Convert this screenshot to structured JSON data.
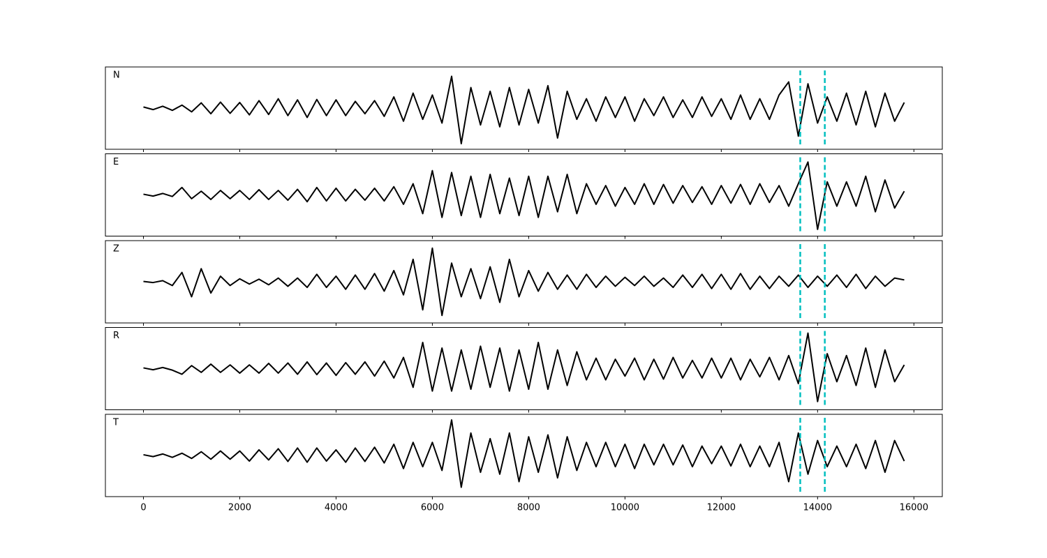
{
  "chart_data": {
    "type": "line",
    "x": [
      0,
      200,
      400,
      600,
      800,
      1000,
      1200,
      1400,
      1600,
      1800,
      2000,
      2200,
      2400,
      2600,
      2800,
      3000,
      3200,
      3400,
      3600,
      3800,
      4000,
      4200,
      4400,
      4600,
      4800,
      5000,
      5200,
      5400,
      5600,
      5800,
      6000,
      6200,
      6400,
      6600,
      6800,
      7000,
      7200,
      7400,
      7600,
      7800,
      8000,
      8200,
      8400,
      8600,
      8800,
      9000,
      9200,
      9400,
      9600,
      9800,
      10000,
      10200,
      10400,
      10600,
      10800,
      11000,
      11200,
      11400,
      11600,
      11800,
      12000,
      12200,
      12400,
      12600,
      12800,
      13000,
      13200,
      13400,
      13600,
      13800,
      14000,
      14200,
      14400,
      14600,
      14800,
      15000,
      15200,
      15400,
      15600,
      15800
    ],
    "xlim": [
      -790,
      16590
    ],
    "xticks": [
      0,
      2000,
      4000,
      6000,
      8000,
      10000,
      12000,
      14000,
      16000
    ],
    "ylim": [
      -1.1,
      1.1
    ],
    "color": "#000000",
    "vlines": [
      13640,
      14150
    ],
    "vline_color": "#00bfbf",
    "panels": [
      {
        "label": "N",
        "values": [
          0.03,
          -0.04,
          0.05,
          -0.06,
          0.08,
          -0.1,
          0.14,
          -0.15,
          0.16,
          -0.14,
          0.15,
          -0.18,
          0.2,
          -0.17,
          0.25,
          -0.2,
          0.22,
          -0.25,
          0.23,
          -0.2,
          0.22,
          -0.2,
          0.18,
          -0.15,
          0.2,
          -0.22,
          0.3,
          -0.35,
          0.4,
          -0.3,
          0.35,
          -0.4,
          0.85,
          -0.95,
          0.55,
          -0.45,
          0.45,
          -0.5,
          0.55,
          -0.45,
          0.5,
          -0.4,
          0.6,
          -0.8,
          0.45,
          -0.3,
          0.25,
          -0.35,
          0.3,
          -0.25,
          0.3,
          -0.35,
          0.25,
          -0.2,
          0.3,
          -0.25,
          0.22,
          -0.25,
          0.3,
          -0.22,
          0.25,
          -0.3,
          0.35,
          -0.3,
          0.25,
          -0.3,
          0.35,
          0.7,
          -0.75,
          0.65,
          -0.4,
          0.3,
          -0.35,
          0.4,
          -0.45,
          0.45,
          -0.5,
          0.4,
          -0.35,
          0.15
        ]
      },
      {
        "label": "E",
        "values": [
          0.02,
          -0.03,
          0.04,
          -0.04,
          0.2,
          -0.1,
          0.1,
          -0.12,
          0.12,
          -0.1,
          0.12,
          -0.12,
          0.14,
          -0.12,
          0.12,
          -0.14,
          0.15,
          -0.18,
          0.2,
          -0.16,
          0.18,
          -0.16,
          0.15,
          -0.14,
          0.18,
          -0.16,
          0.22,
          -0.25,
          0.3,
          -0.5,
          0.65,
          -0.6,
          0.6,
          -0.55,
          0.5,
          -0.6,
          0.55,
          -0.5,
          0.45,
          -0.55,
          0.5,
          -0.6,
          0.5,
          -0.45,
          0.55,
          -0.5,
          0.3,
          -0.25,
          0.25,
          -0.3,
          0.2,
          -0.25,
          0.3,
          -0.25,
          0.28,
          -0.22,
          0.25,
          -0.2,
          0.22,
          -0.25,
          0.25,
          -0.22,
          0.28,
          -0.25,
          0.3,
          -0.2,
          0.25,
          -0.3,
          0.3,
          0.88,
          -0.92,
          0.35,
          -0.3,
          0.35,
          -0.3,
          0.5,
          -0.45,
          0.4,
          -0.35,
          0.1
        ]
      },
      {
        "label": "Z",
        "values": [
          0.01,
          -0.02,
          0.03,
          -0.1,
          0.25,
          -0.4,
          0.35,
          -0.3,
          0.15,
          -0.1,
          0.08,
          -0.06,
          0.07,
          -0.08,
          0.1,
          -0.12,
          0.1,
          -0.15,
          0.2,
          -0.15,
          0.15,
          -0.2,
          0.18,
          -0.2,
          0.22,
          -0.25,
          0.3,
          -0.35,
          0.6,
          -0.75,
          0.9,
          -0.9,
          0.5,
          -0.4,
          0.35,
          -0.45,
          0.4,
          -0.55,
          0.6,
          -0.4,
          0.3,
          -0.25,
          0.25,
          -0.2,
          0.18,
          -0.2,
          0.2,
          -0.15,
          0.15,
          -0.12,
          0.12,
          -0.1,
          0.15,
          -0.12,
          0.1,
          -0.15,
          0.18,
          -0.15,
          0.2,
          -0.18,
          0.2,
          -0.2,
          0.22,
          -0.2,
          0.15,
          -0.18,
          0.15,
          -0.12,
          0.18,
          -0.15,
          0.15,
          -0.12,
          0.18,
          -0.15,
          0.2,
          -0.18,
          0.15,
          -0.12,
          0.1,
          0.05
        ]
      },
      {
        "label": "R",
        "values": [
          0.02,
          -0.03,
          0.03,
          -0.04,
          -0.15,
          0.08,
          -0.1,
          0.12,
          -0.1,
          0.1,
          -0.12,
          0.1,
          -0.12,
          0.14,
          -0.12,
          0.15,
          -0.15,
          0.18,
          -0.16,
          0.15,
          -0.18,
          0.16,
          -0.15,
          0.18,
          -0.2,
          0.2,
          -0.25,
          0.3,
          -0.5,
          0.7,
          -0.6,
          0.55,
          -0.6,
          0.5,
          -0.55,
          0.6,
          -0.5,
          0.55,
          -0.6,
          0.5,
          -0.55,
          0.7,
          -0.55,
          0.5,
          -0.45,
          0.45,
          -0.3,
          0.28,
          -0.3,
          0.25,
          -0.2,
          0.28,
          -0.3,
          0.25,
          -0.28,
          0.3,
          -0.25,
          0.22,
          -0.25,
          0.28,
          -0.25,
          0.28,
          -0.3,
          0.25,
          -0.22,
          0.3,
          -0.3,
          0.35,
          -0.4,
          0.95,
          -0.88,
          0.4,
          -0.35,
          0.35,
          -0.45,
          0.55,
          -0.5,
          0.5,
          -0.35,
          0.1
        ]
      },
      {
        "label": "T",
        "values": [
          0.02,
          -0.03,
          0.04,
          -0.05,
          0.06,
          -0.08,
          0.1,
          -0.1,
          0.12,
          -0.1,
          0.12,
          -0.15,
          0.15,
          -0.12,
          0.18,
          -0.16,
          0.2,
          -0.18,
          0.2,
          -0.15,
          0.15,
          -0.18,
          0.2,
          -0.16,
          0.22,
          -0.2,
          0.3,
          -0.35,
          0.35,
          -0.3,
          0.35,
          -0.4,
          0.95,
          -0.85,
          0.6,
          -0.45,
          0.45,
          -0.5,
          0.6,
          -0.7,
          0.5,
          -0.45,
          0.55,
          -0.6,
          0.5,
          -0.4,
          0.35,
          -0.3,
          0.35,
          -0.3,
          0.3,
          -0.35,
          0.3,
          -0.25,
          0.3,
          -0.25,
          0.28,
          -0.3,
          0.25,
          -0.22,
          0.25,
          -0.28,
          0.3,
          -0.3,
          0.25,
          -0.3,
          0.35,
          -0.7,
          0.6,
          -0.5,
          0.4,
          -0.3,
          0.25,
          -0.3,
          0.3,
          -0.35,
          0.4,
          -0.45,
          0.4,
          -0.15
        ]
      }
    ]
  }
}
